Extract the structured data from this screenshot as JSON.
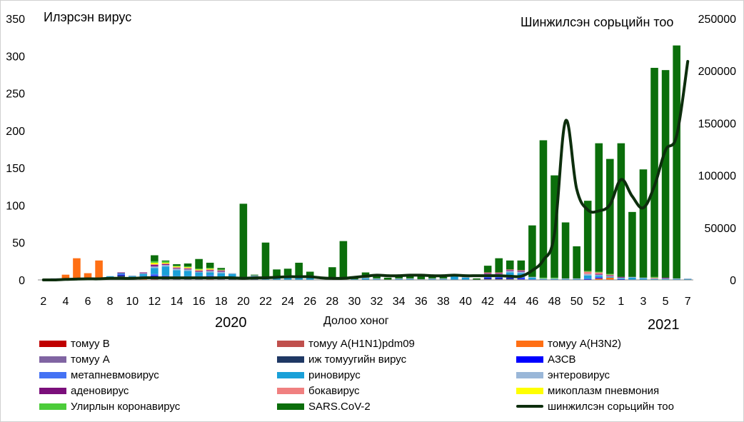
{
  "chart_data": {
    "type": "bar",
    "y_label_left": "Илэрсэн вирус",
    "y_label_right": "Шинжилсэн сорьцийн тоо",
    "x_title": "Долоо хоног",
    "year_labels": [
      "2020",
      "2021"
    ],
    "ylim_left": [
      0,
      350
    ],
    "ylim_right": [
      0,
      250000
    ],
    "yticks_left": [
      "0",
      "50",
      "100",
      "150",
      "200",
      "250",
      "300",
      "350"
    ],
    "yticks_right": [
      "0",
      "50000",
      "100000",
      "150000",
      "200000",
      "250000"
    ],
    "grid": false,
    "categories": [
      "2",
      "3",
      "4",
      "5",
      "6",
      "7",
      "8",
      "9",
      "10",
      "11",
      "12",
      "13",
      "14",
      "15",
      "16",
      "17",
      "18",
      "19",
      "20",
      "21",
      "22",
      "23",
      "24",
      "25",
      "26",
      "27",
      "28",
      "29",
      "30",
      "31",
      "32",
      "33",
      "34",
      "35",
      "36",
      "37",
      "38",
      "39",
      "40",
      "41",
      "42",
      "43",
      "44",
      "45",
      "46",
      "47",
      "48",
      "49",
      "50",
      "51",
      "52",
      "53",
      "1",
      "2",
      "3",
      "4",
      "5",
      "6",
      "7"
    ],
    "x_tick_labels": [
      "2",
      "",
      "4",
      "",
      "6",
      "",
      "8",
      "",
      "10",
      "",
      "12",
      "",
      "14",
      "",
      "16",
      "",
      "18",
      "",
      "20",
      "",
      "22",
      "",
      "24",
      "",
      "26",
      "",
      "28",
      "",
      "30",
      "",
      "32",
      "",
      "34",
      "",
      "36",
      "",
      "38",
      "",
      "40",
      "",
      "42",
      "",
      "44",
      "",
      "46",
      "",
      "48",
      "",
      "50",
      "",
      "52",
      "",
      "1",
      "",
      "3",
      "",
      "5",
      "",
      "7"
    ],
    "series": [
      {
        "name": "томуу B",
        "color": "#c00000",
        "values": [
          0,
          0,
          0,
          0,
          0,
          0,
          0,
          0,
          0,
          0,
          0,
          0,
          0,
          0,
          0,
          0,
          0,
          0,
          0,
          0,
          0,
          0,
          0,
          0,
          0,
          0,
          0,
          0,
          0,
          0,
          0,
          0,
          0,
          0,
          0,
          0,
          0,
          0,
          0,
          0,
          0,
          0,
          0,
          0,
          0,
          0,
          0,
          0,
          0,
          0,
          0,
          0,
          0,
          0,
          0,
          0,
          0,
          0,
          0
        ]
      },
      {
        "name": "томуу A(H1N1)pdm09",
        "color": "#c0504d",
        "values": [
          0,
          0,
          0,
          0,
          0,
          0,
          1,
          1,
          0,
          0,
          1,
          0,
          0,
          0,
          0,
          1,
          0,
          0,
          0,
          0,
          0,
          0,
          0,
          0,
          0,
          0,
          0,
          0,
          0,
          0,
          0,
          0,
          0,
          0,
          0,
          0,
          0,
          0,
          0,
          0,
          0,
          0,
          0,
          0,
          0,
          0,
          0,
          0,
          0,
          0,
          0,
          0,
          0,
          0,
          0,
          0,
          0,
          0,
          0
        ]
      },
      {
        "name": "томуу A(H3N2)",
        "color": "#ff6f14",
        "values": [
          0,
          0,
          7,
          29,
          9,
          26,
          2,
          1,
          0,
          1,
          0,
          0,
          0,
          0,
          0,
          0,
          0,
          0,
          0,
          0,
          0,
          0,
          0,
          0,
          0,
          0,
          0,
          0,
          0,
          0,
          0,
          0,
          0,
          0,
          0,
          0,
          0,
          0,
          0,
          0,
          0,
          0,
          0,
          0,
          0,
          0,
          0,
          0,
          0,
          0,
          2,
          3,
          0,
          0,
          0,
          0,
          0,
          0,
          0
        ]
      },
      {
        "name": "томуу A",
        "color": "#8064a2",
        "values": [
          0,
          0,
          0,
          0,
          0,
          0,
          1,
          2,
          1,
          1,
          2,
          1,
          1,
          1,
          1,
          1,
          1,
          0,
          0,
          0,
          0,
          0,
          0,
          0,
          0,
          0,
          0,
          0,
          0,
          0,
          0,
          0,
          0,
          0,
          0,
          0,
          0,
          0,
          0,
          0,
          1,
          1,
          1,
          1,
          0,
          0,
          0,
          0,
          0,
          0,
          0,
          0,
          0,
          0,
          0,
          0,
          0,
          0,
          0
        ]
      },
      {
        "name": "иж томуугийн вирус",
        "color": "#1f3864",
        "values": [
          0,
          1,
          0,
          0,
          0,
          0,
          0,
          2,
          1,
          1,
          2,
          1,
          1,
          1,
          1,
          1,
          1,
          1,
          0,
          1,
          0,
          0,
          0,
          0,
          0,
          0,
          0,
          0,
          0,
          0,
          0,
          0,
          0,
          0,
          0,
          0,
          0,
          0,
          0,
          0,
          1,
          1,
          1,
          0,
          0,
          0,
          0,
          0,
          0,
          0,
          0,
          0,
          0,
          0,
          0,
          0,
          0,
          0,
          0
        ]
      },
      {
        "name": "АЗСВ",
        "color": "#0000ff",
        "values": [
          0,
          1,
          0,
          0,
          0,
          0,
          0,
          1,
          1,
          1,
          1,
          1,
          1,
          1,
          1,
          1,
          1,
          1,
          0,
          0,
          0,
          0,
          0,
          0,
          0,
          0,
          0,
          0,
          0,
          0,
          0,
          0,
          0,
          0,
          0,
          0,
          0,
          0,
          0,
          0,
          1,
          1,
          1,
          1,
          0,
          0,
          0,
          0,
          0,
          1,
          1,
          0,
          1,
          0,
          0,
          0,
          0,
          0,
          0
        ]
      },
      {
        "name": "метапневмовирус",
        "color": "#4472f4",
        "values": [
          0,
          0,
          0,
          0,
          0,
          0,
          0,
          1,
          1,
          1,
          2,
          3,
          2,
          2,
          2,
          2,
          1,
          1,
          0,
          0,
          0,
          0,
          0,
          0,
          0,
          0,
          0,
          0,
          0,
          0,
          0,
          0,
          0,
          0,
          0,
          0,
          0,
          0,
          0,
          0,
          1,
          1,
          2,
          2,
          1,
          0,
          0,
          0,
          0,
          1,
          1,
          0,
          0,
          0,
          0,
          0,
          0,
          0,
          0
        ]
      },
      {
        "name": "риновирус",
        "color": "#1aa0d8",
        "values": [
          0,
          0,
          0,
          0,
          0,
          0,
          1,
          1,
          1,
          3,
          8,
          12,
          8,
          7,
          5,
          4,
          5,
          5,
          0,
          4,
          1,
          2,
          5,
          4,
          4,
          0,
          1,
          0,
          1,
          2,
          1,
          0,
          1,
          1,
          0,
          1,
          1,
          6,
          3,
          0,
          3,
          3,
          5,
          5,
          2,
          1,
          1,
          1,
          1,
          4,
          2,
          1,
          1,
          3,
          2,
          1,
          1,
          1,
          1
        ]
      },
      {
        "name": "энтеровирус",
        "color": "#9ab7d8",
        "values": [
          0,
          0,
          0,
          0,
          0,
          0,
          0,
          0,
          1,
          1,
          2,
          2,
          2,
          2,
          1,
          2,
          2,
          1,
          0,
          1,
          1,
          1,
          1,
          1,
          1,
          0,
          1,
          0,
          0,
          1,
          1,
          0,
          1,
          1,
          1,
          1,
          1,
          1,
          1,
          0,
          1,
          1,
          2,
          2,
          1,
          1,
          1,
          1,
          1,
          2,
          1,
          1,
          1,
          1,
          1,
          1,
          1,
          1,
          1
        ]
      },
      {
        "name": "аденовирус",
        "color": "#7b0f7b",
        "values": [
          0,
          0,
          0,
          0,
          0,
          0,
          0,
          1,
          0,
          1,
          2,
          1,
          1,
          1,
          1,
          1,
          1,
          0,
          0,
          0,
          0,
          0,
          0,
          0,
          0,
          0,
          0,
          0,
          0,
          0,
          0,
          0,
          0,
          0,
          0,
          0,
          0,
          0,
          0,
          0,
          1,
          1,
          1,
          1,
          0,
          0,
          0,
          0,
          0,
          0,
          1,
          1,
          1,
          0,
          0,
          0,
          1,
          0,
          0
        ]
      },
      {
        "name": "бокавирус",
        "color": "#f08080",
        "values": [
          0,
          0,
          0,
          0,
          0,
          0,
          0,
          0,
          0,
          0,
          1,
          1,
          1,
          1,
          1,
          1,
          1,
          0,
          0,
          0,
          0,
          0,
          0,
          0,
          0,
          0,
          0,
          0,
          0,
          0,
          0,
          0,
          0,
          0,
          0,
          0,
          0,
          0,
          0,
          0,
          1,
          1,
          1,
          1,
          0,
          0,
          0,
          0,
          0,
          3,
          2,
          1,
          0,
          0,
          0,
          1,
          0,
          0,
          0
        ]
      },
      {
        "name": "микоплазм пневмония",
        "color": "#ffff00",
        "values": [
          0,
          0,
          0,
          0,
          0,
          0,
          0,
          0,
          0,
          0,
          2,
          1,
          1,
          1,
          1,
          1,
          0,
          0,
          0,
          0,
          0,
          0,
          0,
          0,
          0,
          0,
          0,
          0,
          0,
          0,
          0,
          0,
          0,
          0,
          0,
          0,
          0,
          0,
          0,
          0,
          0,
          0,
          0,
          0,
          0,
          0,
          0,
          0,
          0,
          0,
          0,
          0,
          0,
          0,
          0,
          0,
          0,
          0,
          0
        ]
      },
      {
        "name": "Улирлын коронавирус",
        "color": "#4ccc3a",
        "values": [
          0,
          0,
          0,
          0,
          0,
          0,
          0,
          0,
          0,
          0,
          2,
          2,
          1,
          1,
          1,
          1,
          1,
          0,
          0,
          0,
          0,
          0,
          0,
          0,
          0,
          0,
          0,
          0,
          0,
          0,
          0,
          0,
          0,
          0,
          0,
          0,
          0,
          0,
          0,
          0,
          0,
          0,
          0,
          0,
          0,
          1,
          1,
          0,
          0,
          1,
          1,
          1,
          0,
          0,
          0,
          1,
          0,
          0,
          0
        ]
      },
      {
        "name": "SARS.CoV-2",
        "color": "#0b6e0b",
        "values": [
          0,
          0,
          0,
          0,
          0,
          0,
          0,
          0,
          0,
          0,
          8,
          1,
          2,
          4,
          13,
          7,
          2,
          0,
          102,
          1,
          48,
          11,
          9,
          18,
          6,
          0,
          15,
          52,
          2,
          7,
          3,
          3,
          3,
          3,
          7,
          2,
          2,
          0,
          1,
          2,
          9,
          19,
          12,
          13,
          69,
          184,
          137,
          75,
          43,
          94,
          172,
          154,
          179,
          87,
          145,
          280,
          278,
          312,
          0
        ]
      }
    ],
    "line_series": {
      "name": "шинжилсэн сорьцийн тоо",
      "color": "#0d2e0d",
      "axis": "right",
      "values": [
        0,
        0,
        500,
        800,
        1000,
        1000,
        1500,
        1500,
        1500,
        2000,
        2000,
        2000,
        2000,
        2000,
        2000,
        2000,
        2000,
        2000,
        1500,
        2000,
        2000,
        2500,
        3000,
        3000,
        3000,
        2000,
        1500,
        1500,
        2500,
        3500,
        4500,
        4000,
        4000,
        4500,
        4500,
        4000,
        4000,
        4500,
        4000,
        4000,
        4000,
        4000,
        3500,
        3500,
        9000,
        19000,
        44000,
        152000,
        87000,
        67000,
        66000,
        72000,
        96000,
        80000,
        69000,
        90000,
        124000,
        138000,
        209000
      ]
    },
    "legend_placement": "bottom"
  }
}
